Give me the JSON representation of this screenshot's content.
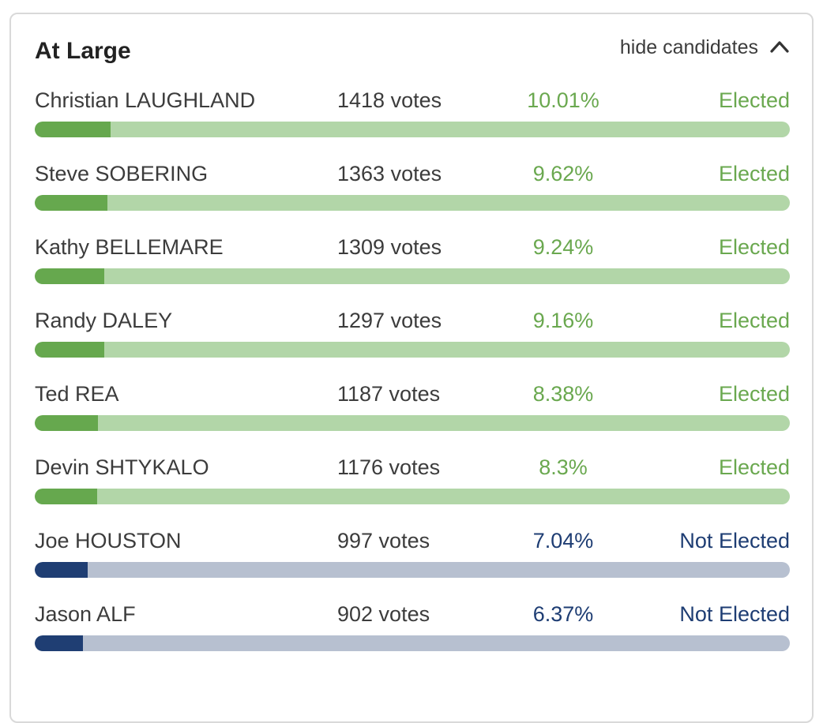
{
  "section": {
    "title": "At Large",
    "toggle_label": "hide candidates"
  },
  "colors": {
    "elected_text": "#6aa84f",
    "elected_fill": "#66a84e",
    "elected_track": "#b2d6a8",
    "not_elected_text": "#1e3d73",
    "not_elected_fill": "#1f3e73",
    "not_elected_track": "#b7c0d0"
  },
  "candidates": [
    {
      "name": "Christian LAUGHLAND",
      "votes": "1418 votes",
      "percent": "10.01%",
      "share": 0.1001,
      "status": "Elected",
      "elected": true
    },
    {
      "name": "Steve SOBERING",
      "votes": "1363 votes",
      "percent": "9.62%",
      "share": 0.0962,
      "status": "Elected",
      "elected": true
    },
    {
      "name": "Kathy BELLEMARE",
      "votes": "1309 votes",
      "percent": "9.24%",
      "share": 0.0924,
      "status": "Elected",
      "elected": true
    },
    {
      "name": "Randy DALEY",
      "votes": "1297 votes",
      "percent": "9.16%",
      "share": 0.0916,
      "status": "Elected",
      "elected": true
    },
    {
      "name": "Ted REA",
      "votes": "1187 votes",
      "percent": "8.38%",
      "share": 0.0838,
      "status": "Elected",
      "elected": true
    },
    {
      "name": "Devin SHTYKALO",
      "votes": "1176 votes",
      "percent": "8.3%",
      "share": 0.083,
      "status": "Elected",
      "elected": true
    },
    {
      "name": "Joe HOUSTON",
      "votes": "997 votes",
      "percent": "7.04%",
      "share": 0.0704,
      "status": "Not Elected",
      "elected": false
    },
    {
      "name": "Jason ALF",
      "votes": "902 votes",
      "percent": "6.37%",
      "share": 0.0637,
      "status": "Not Elected",
      "elected": false
    }
  ]
}
